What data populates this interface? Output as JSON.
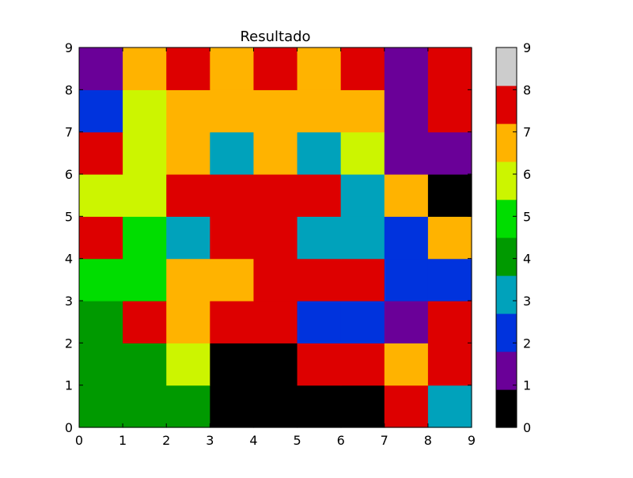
{
  "chart_data": {
    "type": "heatmap",
    "title": "Resultado",
    "xlabel": "",
    "ylabel": "",
    "xlim": [
      0,
      9
    ],
    "ylim": [
      0,
      9
    ],
    "x_ticks": [
      "0",
      "1",
      "2",
      "3",
      "4",
      "5",
      "6",
      "7",
      "8",
      "9"
    ],
    "y_ticks": [
      "0",
      "1",
      "2",
      "3",
      "4",
      "5",
      "6",
      "7",
      "8",
      "9"
    ],
    "grid": false,
    "rows_bottom_to_top": [
      [
        4,
        4,
        4,
        0,
        0,
        0,
        0,
        8,
        3
      ],
      [
        4,
        4,
        6,
        0,
        0,
        8,
        8,
        7,
        8
      ],
      [
        4,
        8,
        7,
        8,
        8,
        2,
        2,
        1,
        8
      ],
      [
        5,
        5,
        7,
        7,
        8,
        8,
        8,
        2,
        2
      ],
      [
        8,
        5,
        3,
        8,
        8,
        3,
        3,
        2,
        7
      ],
      [
        6,
        6,
        8,
        8,
        8,
        8,
        3,
        7,
        0
      ],
      [
        8,
        6,
        7,
        3,
        7,
        3,
        6,
        1,
        1
      ],
      [
        2,
        6,
        7,
        7,
        7,
        7,
        7,
        1,
        8
      ],
      [
        1,
        7,
        8,
        7,
        8,
        7,
        8,
        1,
        8
      ]
    ],
    "colorbar": {
      "levels": [
        0,
        1,
        2,
        3,
        4,
        5,
        6,
        7,
        8
      ],
      "colors": [
        "#000000",
        "#6a0098",
        "#0033dd",
        "#00a2bb",
        "#009a00",
        "#00dd00",
        "#ccf500",
        "#ffb300",
        "#dd0000"
      ],
      "top_color": "#cccccc",
      "ticks": [
        "0",
        "1",
        "2",
        "3",
        "4",
        "5",
        "6",
        "7",
        "8",
        "9"
      ]
    }
  }
}
